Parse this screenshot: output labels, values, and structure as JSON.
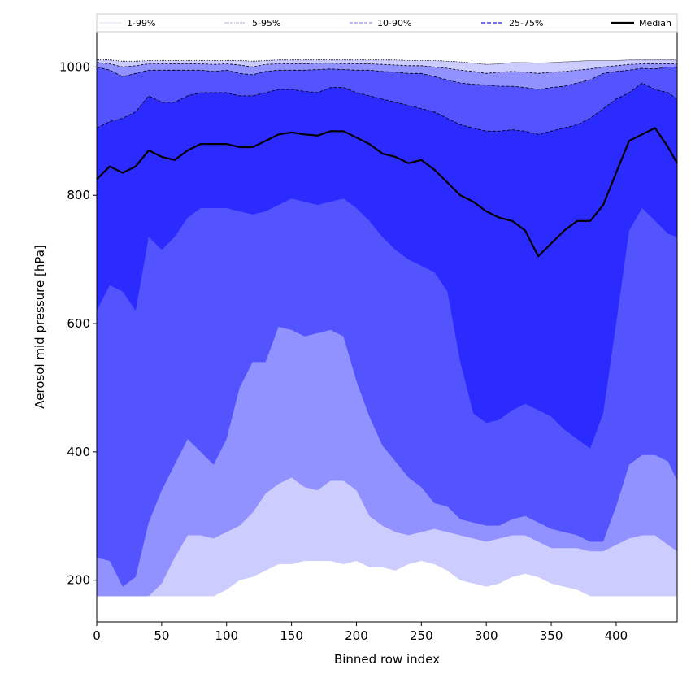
{
  "chart_data": {
    "type": "area",
    "title": "",
    "xlabel": "Binned row index",
    "ylabel": "Aerosol mid pressure [hPa]",
    "xlim": [
      0,
      447
    ],
    "ylim": [
      135,
      1055
    ],
    "x_ticks": [
      0,
      50,
      100,
      150,
      200,
      250,
      300,
      350,
      400
    ],
    "y_ticks": [
      200,
      400,
      600,
      800,
      1000
    ],
    "x_tick_labels": [
      "0",
      "50",
      "100",
      "150",
      "200",
      "250",
      "300",
      "350",
      "400"
    ],
    "y_tick_labels": [
      "200",
      "400",
      "600",
      "800",
      "1000"
    ],
    "x": [
      0,
      10,
      20,
      30,
      40,
      50,
      60,
      70,
      80,
      90,
      100,
      110,
      120,
      130,
      140,
      150,
      160,
      170,
      180,
      190,
      200,
      210,
      220,
      230,
      240,
      250,
      260,
      270,
      280,
      290,
      300,
      310,
      320,
      330,
      340,
      350,
      360,
      370,
      380,
      390,
      400,
      410,
      420,
      430,
      440,
      447
    ],
    "series": [
      {
        "name": "p1",
        "values": [
          175,
          175,
          175,
          175,
          175,
          175,
          175,
          175,
          175,
          175,
          185,
          200,
          205,
          215,
          225,
          225,
          230,
          230,
          230,
          225,
          230,
          220,
          220,
          215,
          225,
          230,
          225,
          215,
          200,
          195,
          190,
          195,
          205,
          210,
          205,
          195,
          190,
          185,
          175,
          175,
          175,
          175,
          175,
          175,
          175,
          175
        ]
      },
      {
        "name": "p5",
        "values": [
          175,
          175,
          175,
          175,
          175,
          195,
          235,
          270,
          270,
          265,
          275,
          285,
          305,
          335,
          350,
          360,
          345,
          340,
          355,
          355,
          340,
          300,
          285,
          275,
          270,
          275,
          280,
          275,
          270,
          265,
          260,
          265,
          270,
          270,
          260,
          250,
          250,
          250,
          245,
          245,
          255,
          265,
          270,
          270,
          255,
          245
        ]
      },
      {
        "name": "p10",
        "values": [
          235,
          230,
          190,
          205,
          290,
          340,
          380,
          420,
          400,
          380,
          420,
          500,
          540,
          540,
          595,
          590,
          580,
          585,
          590,
          580,
          510,
          455,
          410,
          385,
          360,
          345,
          320,
          315,
          295,
          290,
          285,
          285,
          295,
          300,
          290,
          280,
          275,
          270,
          260,
          260,
          315,
          380,
          395,
          395,
          385,
          355
        ]
      },
      {
        "name": "p25",
        "values": [
          620,
          660,
          650,
          620,
          735,
          715,
          735,
          765,
          780,
          780,
          780,
          775,
          770,
          775,
          785,
          795,
          790,
          785,
          790,
          795,
          780,
          760,
          735,
          715,
          700,
          690,
          680,
          650,
          540,
          460,
          445,
          450,
          465,
          475,
          465,
          455,
          435,
          420,
          405,
          460,
          600,
          745,
          780,
          760,
          740,
          735
        ]
      },
      {
        "name": "median",
        "values": [
          825,
          845,
          835,
          845,
          870,
          860,
          855,
          870,
          880,
          880,
          880,
          875,
          875,
          885,
          895,
          898,
          895,
          893,
          900,
          900,
          890,
          880,
          865,
          860,
          850,
          855,
          840,
          820,
          800,
          790,
          775,
          765,
          760,
          745,
          705,
          725,
          745,
          760,
          760,
          785,
          835,
          885,
          895,
          905,
          875,
          850
        ]
      },
      {
        "name": "p75",
        "values": [
          905,
          915,
          920,
          930,
          955,
          945,
          945,
          955,
          960,
          960,
          960,
          955,
          955,
          960,
          965,
          965,
          962,
          960,
          968,
          968,
          960,
          955,
          950,
          945,
          940,
          935,
          930,
          920,
          910,
          905,
          900,
          900,
          902,
          900,
          895,
          900,
          905,
          910,
          920,
          935,
          950,
          960,
          975,
          965,
          960,
          950
        ]
      },
      {
        "name": "p90",
        "values": [
          1000,
          995,
          985,
          990,
          995,
          995,
          995,
          995,
          995,
          993,
          995,
          990,
          988,
          993,
          995,
          995,
          995,
          996,
          997,
          996,
          995,
          995,
          993,
          992,
          990,
          990,
          985,
          980,
          975,
          973,
          972,
          970,
          970,
          968,
          965,
          968,
          970,
          975,
          980,
          990,
          993,
          995,
          998,
          997,
          1000,
          1000
        ]
      },
      {
        "name": "p95",
        "values": [
          1007,
          1005,
          1000,
          1002,
          1005,
          1005,
          1005,
          1005,
          1005,
          1004,
          1005,
          1003,
          1000,
          1004,
          1005,
          1005,
          1005,
          1006,
          1006,
          1005,
          1005,
          1005,
          1004,
          1003,
          1002,
          1002,
          1000,
          998,
          995,
          993,
          990,
          992,
          993,
          992,
          990,
          992,
          993,
          995,
          997,
          1000,
          1002,
          1004,
          1005,
          1005,
          1005,
          1005
        ]
      },
      {
        "name": "p99",
        "values": [
          1011,
          1011,
          1009,
          1009,
          1010,
          1010,
          1010,
          1010,
          1010,
          1010,
          1010,
          1010,
          1009,
          1010,
          1011,
          1011,
          1011,
          1011,
          1011,
          1011,
          1011,
          1011,
          1011,
          1011,
          1010,
          1010,
          1010,
          1009,
          1008,
          1006,
          1004,
          1005,
          1007,
          1007,
          1006,
          1007,
          1008,
          1009,
          1010,
          1010,
          1010,
          1011,
          1011,
          1011,
          1011,
          1011
        ]
      }
    ],
    "bands": [
      {
        "lower": "p1",
        "upper": "p99",
        "color": "#ccccff"
      },
      {
        "lower": "p5",
        "upper": "p95",
        "color": "#9191ff"
      },
      {
        "lower": "p10",
        "upper": "p90",
        "color": "#5454ff"
      },
      {
        "lower": "p25",
        "upper": "p75",
        "color": "#2b2bff"
      }
    ],
    "legend": {
      "position": "top",
      "entries": [
        {
          "label": "1-99%",
          "color": "#c6c6e8",
          "style": "solid-thin"
        },
        {
          "label": "5-95%",
          "color": "#9a9ad8",
          "style": "dashdot-thin"
        },
        {
          "label": "10-90%",
          "color": "#7777ee",
          "style": "dashed"
        },
        {
          "label": "25-75%",
          "color": "#4444ee",
          "style": "dashed-thick"
        },
        {
          "label": "Median",
          "color": "#000000",
          "style": "solid-thick"
        }
      ]
    },
    "boundary_lines": [
      {
        "series": "p75",
        "color": "#000000",
        "dash": "4,2"
      },
      {
        "series": "p90",
        "color": "#000000",
        "dash": "4,2"
      },
      {
        "series": "p95",
        "color": "#000000",
        "dash": "3,2"
      },
      {
        "series": "p99",
        "color": "#000000",
        "dash": "1,1"
      },
      {
        "series": "median",
        "color": "#000000",
        "dash": ""
      }
    ]
  }
}
